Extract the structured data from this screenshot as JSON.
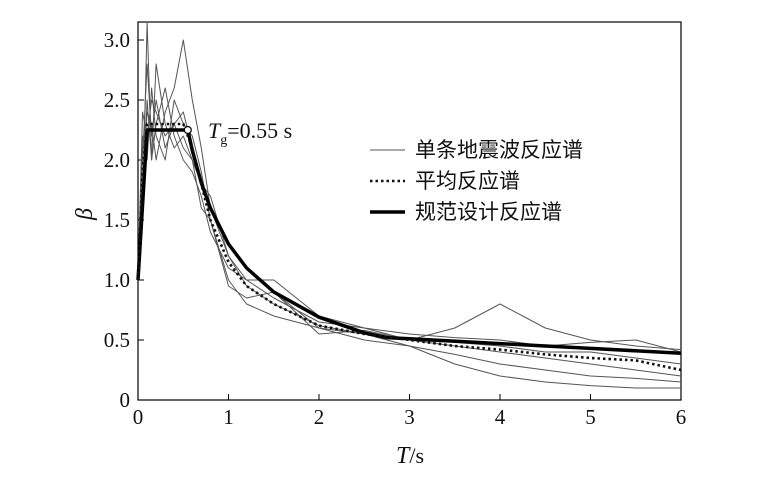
{
  "chart_data": {
    "type": "line",
    "title": "",
    "xlabel": "T/s",
    "xlabel_var": "T",
    "xlabel_unit": "/s",
    "ylabel": "β",
    "xlim": [
      0,
      6
    ],
    "ylim": [
      0,
      3.15
    ],
    "x_ticks": [
      0,
      1,
      2,
      3,
      4,
      5,
      6
    ],
    "x_tick_labels": [
      "0",
      "1",
      "2",
      "3",
      "4",
      "5",
      "6"
    ],
    "y_ticks": [
      0,
      0.5,
      1.0,
      1.5,
      2.0,
      2.5,
      3.0
    ],
    "y_tick_labels": [
      "0",
      "0.5",
      "1.0",
      "1.5",
      "2.0",
      "2.5",
      "3.0"
    ],
    "grid": false,
    "legend_position": "top-right",
    "annotation": {
      "base": "T",
      "subscript": "g",
      "rest": "=0.55 s",
      "point": [
        0.55,
        2.25
      ]
    },
    "series": [
      {
        "name": "单条地震波反应谱",
        "style": "thin",
        "color": "#555555",
        "curves": [
          {
            "x": [
              0,
              0.05,
              0.1,
              0.15,
              0.2,
              0.3,
              0.4,
              0.5,
              0.6,
              0.7,
              0.8,
              1.0,
              1.2,
              1.5,
              2.0,
              2.5,
              3.0,
              3.5,
              4.0,
              4.5,
              5.0,
              5.5,
              6.0
            ],
            "y": [
              1.0,
              2.0,
              2.8,
              2.2,
              2.5,
              2.1,
              2.3,
              2.4,
              2.1,
              1.8,
              1.6,
              1.2,
              0.95,
              0.8,
              0.62,
              0.55,
              0.5,
              0.45,
              0.4,
              0.35,
              0.3,
              0.25,
              0.2
            ]
          },
          {
            "x": [
              0,
              0.05,
              0.1,
              0.15,
              0.2,
              0.3,
              0.4,
              0.5,
              0.6,
              0.7,
              0.8,
              1.0,
              1.2,
              1.5,
              2.0,
              2.5,
              3.0,
              3.5,
              4.0,
              4.5,
              5.0,
              5.5,
              6.0
            ],
            "y": [
              1.0,
              1.5,
              3.2,
              2.0,
              2.3,
              2.6,
              2.2,
              2.0,
              1.9,
              1.7,
              1.4,
              1.1,
              1.0,
              0.85,
              0.65,
              0.6,
              0.55,
              0.52,
              0.5,
              0.45,
              0.48,
              0.5,
              0.4
            ]
          },
          {
            "x": [
              0,
              0.05,
              0.1,
              0.15,
              0.2,
              0.3,
              0.4,
              0.5,
              0.6,
              0.7,
              0.8,
              1.0,
              1.2,
              1.5,
              2.0,
              2.5,
              3.0,
              3.5,
              4.0,
              4.5,
              5.0,
              5.5,
              6.0
            ],
            "y": [
              1.0,
              1.8,
              2.4,
              2.3,
              2.0,
              2.4,
              2.6,
              3.0,
              2.5,
              2.1,
              1.6,
              1.3,
              1.1,
              0.9,
              0.6,
              0.55,
              0.45,
              0.38,
              0.3,
              0.25,
              0.2,
              0.18,
              0.15
            ]
          },
          {
            "x": [
              0,
              0.05,
              0.1,
              0.15,
              0.2,
              0.3,
              0.4,
              0.5,
              0.6,
              0.7,
              0.8,
              1.0,
              1.2,
              1.5,
              2.0,
              2.5,
              3.0,
              3.5,
              4.0,
              4.5,
              5.0,
              5.5,
              6.0
            ],
            "y": [
              1.0,
              2.2,
              2.0,
              2.6,
              2.2,
              2.0,
              2.5,
              2.3,
              2.2,
              1.9,
              1.5,
              0.95,
              0.85,
              0.9,
              0.55,
              0.58,
              0.5,
              0.6,
              0.8,
              0.6,
              0.5,
              0.45,
              0.42
            ]
          },
          {
            "x": [
              0,
              0.05,
              0.1,
              0.15,
              0.2,
              0.3,
              0.4,
              0.5,
              0.6,
              0.7,
              0.8,
              1.0,
              1.2,
              1.5,
              2.0,
              2.5,
              3.0,
              3.5,
              4.0,
              4.5,
              5.0,
              5.5,
              6.0
            ],
            "y": [
              1.0,
              1.6,
              2.5,
              2.0,
              2.8,
              2.3,
              2.1,
              2.2,
              2.0,
              1.6,
              1.5,
              1.0,
              0.8,
              0.7,
              0.6,
              0.5,
              0.45,
              0.3,
              0.2,
              0.15,
              0.12,
              0.1,
              0.1
            ]
          },
          {
            "x": [
              0,
              0.05,
              0.1,
              0.15,
              0.2,
              0.3,
              0.4,
              0.5,
              0.6,
              0.7,
              0.8,
              1.0,
              1.2,
              1.5,
              2.0,
              2.5,
              3.0,
              3.5,
              4.0,
              4.5,
              5.0,
              5.5,
              6.0
            ],
            "y": [
              1.0,
              2.4,
              2.2,
              2.5,
              2.4,
              2.2,
              2.3,
              2.1,
              2.0,
              1.8,
              1.7,
              1.2,
              1.0,
              1.0,
              0.7,
              0.6,
              0.5,
              0.48,
              0.45,
              0.4,
              0.4,
              0.35,
              0.3
            ]
          }
        ]
      },
      {
        "name": "平均反应谱",
        "style": "dotted",
        "color": "#111111",
        "x": [
          0,
          0.05,
          0.1,
          0.2,
          0.3,
          0.4,
          0.5,
          0.6,
          0.7,
          0.8,
          1.0,
          1.2,
          1.5,
          2.0,
          2.5,
          3.0,
          3.5,
          4.0,
          4.5,
          5.0,
          5.5,
          6.0
        ],
        "y": [
          1.0,
          1.9,
          2.3,
          2.3,
          2.3,
          2.3,
          2.3,
          2.1,
          1.8,
          1.5,
          1.15,
          0.95,
          0.8,
          0.62,
          0.55,
          0.5,
          0.45,
          0.42,
          0.38,
          0.35,
          0.33,
          0.25
        ]
      },
      {
        "name": "规范设计反应谱",
        "style": "thick",
        "color": "#000000",
        "x": [
          0,
          0.1,
          0.55,
          0.6,
          0.7,
          0.8,
          1.0,
          1.2,
          1.5,
          2.0,
          2.5,
          2.75,
          3.0,
          4.0,
          5.0,
          6.0
        ],
        "y": [
          1.0,
          2.25,
          2.25,
          2.08,
          1.81,
          1.6,
          1.3,
          1.1,
          0.9,
          0.69,
          0.56,
          0.52,
          0.51,
          0.47,
          0.43,
          0.39
        ]
      }
    ]
  }
}
